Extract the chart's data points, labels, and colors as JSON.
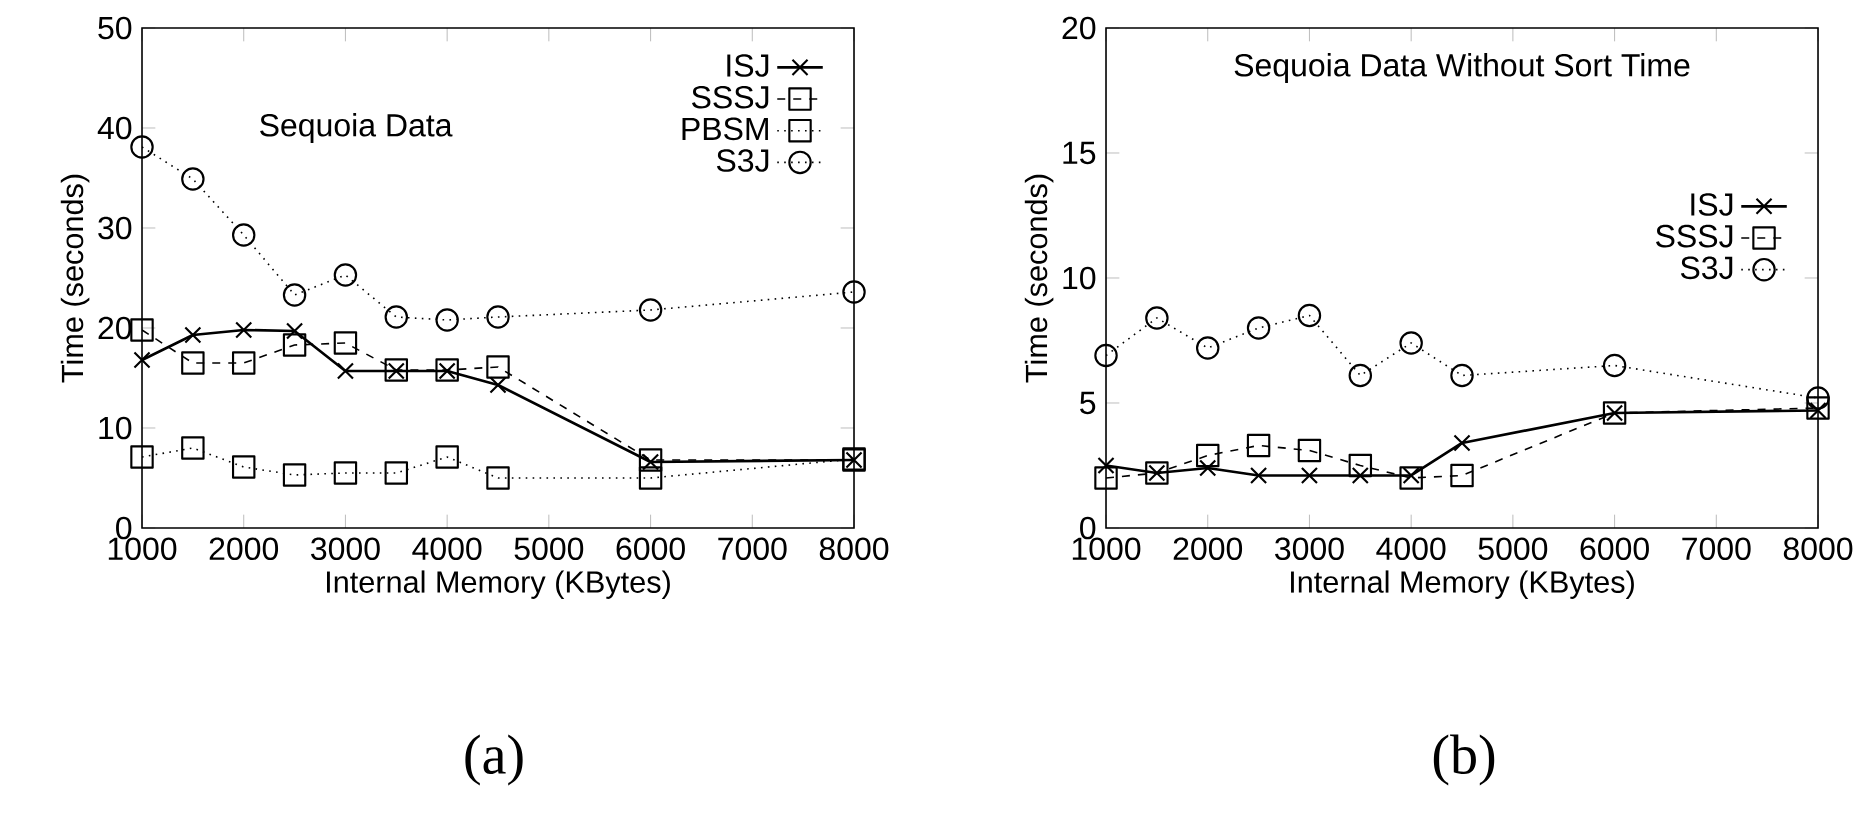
{
  "chart_data": [
    {
      "type": "line",
      "title": "Sequoia Data",
      "xlabel": "Internal Memory (KBytes)",
      "ylabel": "Time (seconds)",
      "annotations": [
        "(a)"
      ],
      "x": [
        1000,
        1500,
        2000,
        2500,
        3000,
        3500,
        4000,
        4500,
        6000,
        8000
      ],
      "xlim": [
        1000,
        8000
      ],
      "xticks": [
        1000,
        2000,
        3000,
        4000,
        5000,
        6000,
        7000,
        8000
      ],
      "ylim": [
        0,
        50
      ],
      "yticks": [
        0,
        10,
        20,
        30,
        40,
        50
      ],
      "grid": false,
      "legend": "top right",
      "series": [
        {
          "name": "ISJ",
          "color": "#000000",
          "marker": "cross",
          "line_style": "solid",
          "values": [
            16.8,
            19.3,
            19.8,
            19.7,
            15.7,
            15.7,
            15.7,
            14.3,
            6.6,
            6.8
          ]
        },
        {
          "name": "SSSJ",
          "color": "#000000",
          "marker": "square",
          "line_style": "dashed",
          "values": [
            19.8,
            16.5,
            16.5,
            18.3,
            18.5,
            15.8,
            15.8,
            16.1,
            6.8,
            6.8
          ]
        },
        {
          "name": "PBSM",
          "color": "#000000",
          "marker": "square",
          "line_style": "dotted",
          "values": [
            7.1,
            8.0,
            6.1,
            5.3,
            5.5,
            5.5,
            7.1,
            5.0,
            5.0,
            6.9
          ]
        },
        {
          "name": "S3J",
          "color": "#000000",
          "marker": "circle",
          "line_style": "dotted",
          "values": [
            38.1,
            34.9,
            29.3,
            23.3,
            25.3,
            21.1,
            20.8,
            21.1,
            21.8,
            23.6
          ]
        }
      ]
    },
    {
      "type": "line",
      "title": "Sequoia Data Without Sort Time",
      "xlabel": "Internal Memory (KBytes)",
      "ylabel": "Time (seconds)",
      "annotations": [
        "(b)"
      ],
      "x": [
        1000,
        1500,
        2000,
        2500,
        3000,
        3500,
        4000,
        4500,
        6000,
        8000
      ],
      "xlim": [
        1000,
        8000
      ],
      "xticks": [
        1000,
        2000,
        3000,
        4000,
        5000,
        6000,
        7000,
        8000
      ],
      "ylim": [
        0,
        20
      ],
      "yticks": [
        0,
        5,
        10,
        15,
        20
      ],
      "grid": false,
      "legend": "right",
      "series": [
        {
          "name": "ISJ",
          "color": "#000000",
          "marker": "cross",
          "line_style": "solid",
          "values": [
            2.5,
            2.2,
            2.4,
            2.1,
            2.1,
            2.1,
            2.1,
            3.4,
            4.6,
            4.7
          ]
        },
        {
          "name": "SSSJ",
          "color": "#000000",
          "marker": "square",
          "line_style": "dashed",
          "values": [
            2.0,
            2.2,
            2.9,
            3.3,
            3.1,
            2.5,
            2.0,
            2.1,
            4.6,
            4.8
          ]
        },
        {
          "name": "S3J",
          "color": "#000000",
          "marker": "circle",
          "line_style": "dotted",
          "values": [
            6.9,
            8.4,
            7.2,
            8.0,
            8.5,
            6.1,
            7.4,
            6.1,
            6.5,
            5.2
          ]
        }
      ]
    }
  ]
}
